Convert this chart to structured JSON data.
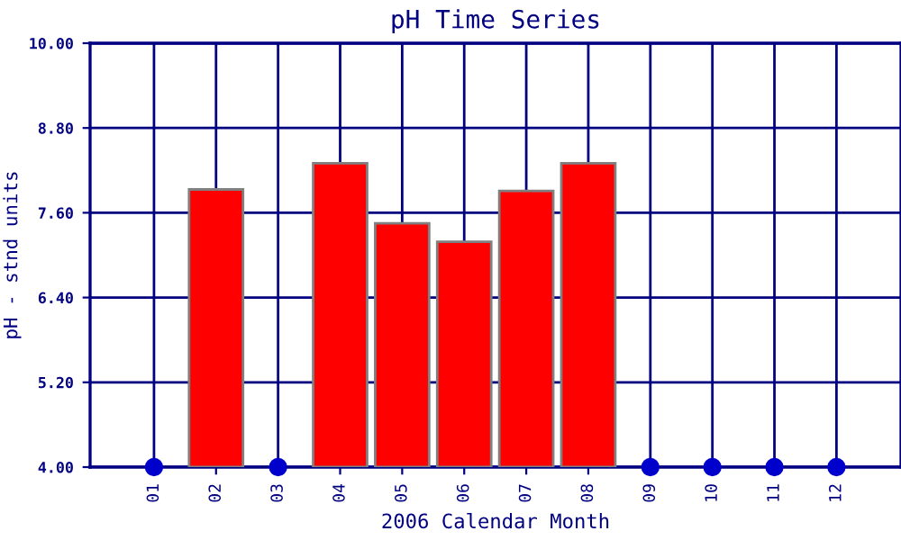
{
  "chart_data": {
    "type": "bar",
    "title": "pH Time Series",
    "xlabel": "2006 Calendar Month",
    "ylabel": "pH - stnd units",
    "categories": [
      "01",
      "02",
      "03",
      "04",
      "05",
      "06",
      "07",
      "08",
      "09",
      "10",
      "11",
      "12"
    ],
    "series": [
      {
        "color": "#ff0000",
        "values": [
          null,
          7.93,
          null,
          8.3,
          7.45,
          7.19,
          7.91,
          8.3,
          null,
          null,
          null,
          null
        ]
      },
      {
        "type": "scatter",
        "color": "#0000cc",
        "marker": "circle",
        "x": [
          "01",
          "03",
          "09",
          "10",
          "11",
          "12"
        ],
        "values": [
          4.0,
          4.0,
          4.0,
          4.0,
          4.0,
          4.0
        ]
      }
    ],
    "ylim": [
      4.0,
      10.0
    ],
    "yticks": [
      {
        "value": 4.0,
        "label": "4.00"
      },
      {
        "value": 5.2,
        "label": "5.20"
      },
      {
        "value": 6.4,
        "label": "6.40"
      },
      {
        "value": 7.6,
        "label": "7.60"
      },
      {
        "value": 8.8,
        "label": "8.80"
      },
      {
        "value": 10.0,
        "label": "10.00"
      }
    ],
    "grid": true,
    "legend": false
  }
}
